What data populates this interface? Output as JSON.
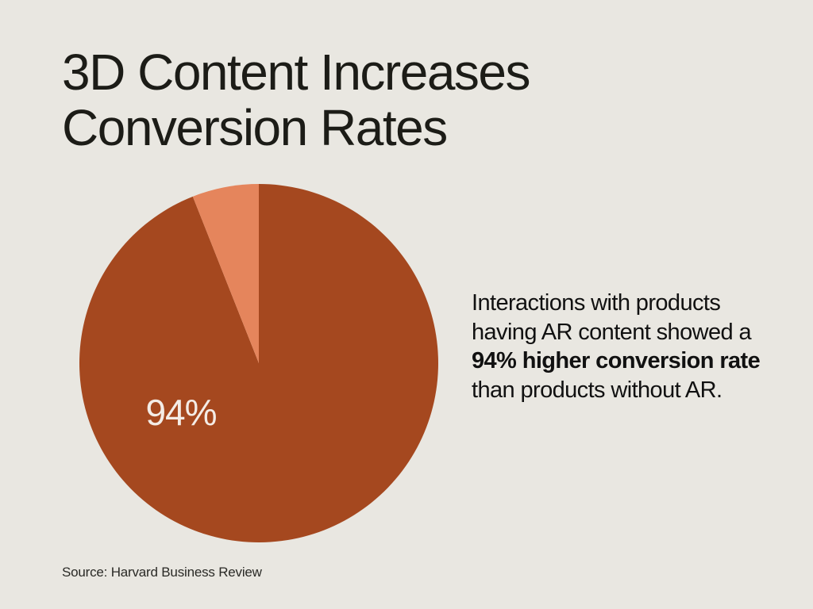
{
  "title": {
    "line1": "3D Content Increases",
    "line2": "Conversion Rates"
  },
  "description": {
    "part1": "Interactions with products having AR content showed a ",
    "highlight": "94% higher conversion rate",
    "part2": " than products without AR."
  },
  "source": "Source: Harvard Business Review",
  "colors": {
    "background": "#e9e7e1",
    "primary_slice": "#a5481f",
    "secondary_slice": "#e5855c",
    "label": "#f4ece6"
  },
  "chart_data": {
    "type": "pie",
    "slices": [
      {
        "value": 94,
        "color": "#a5481f"
      },
      {
        "value": 6,
        "color": "#e5855c"
      }
    ],
    "data_labels": [
      "94%"
    ]
  }
}
